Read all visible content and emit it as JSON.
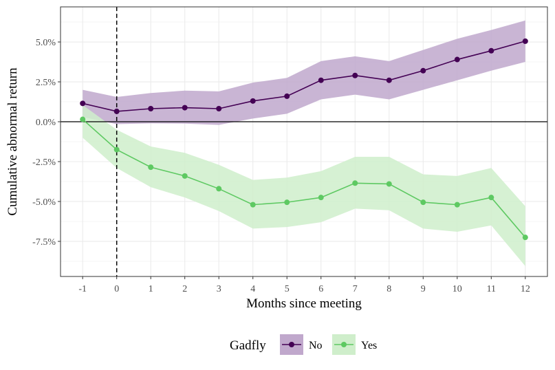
{
  "chart_data": {
    "type": "line",
    "xlabel": "Months since meeting",
    "ylabel": "Cumulative abnormal return",
    "x": [
      -1,
      0,
      1,
      2,
      3,
      4,
      5,
      6,
      7,
      8,
      9,
      10,
      11,
      12
    ],
    "x_tick_labels": [
      "-1",
      "0",
      "1",
      "2",
      "3",
      "4",
      "5",
      "6",
      "7",
      "8",
      "9",
      "10",
      "11",
      "12"
    ],
    "y_ticks": [
      5.0,
      2.5,
      0.0,
      -2.5,
      -5.0,
      -7.5
    ],
    "y_tick_labels": [
      "5.0%",
      "2.5%",
      "0.0%",
      "-2.5%",
      "-5.0%",
      "-7.5%"
    ],
    "xlim": [
      -1.65,
      12.65
    ],
    "ylim": [
      -9.7,
      7.2
    ],
    "grid": true,
    "reference_hline": 0,
    "reference_vline": 0,
    "legend": {
      "title": "Gadfly",
      "position": "bottom",
      "entries": [
        "No",
        "Yes"
      ]
    },
    "series": [
      {
        "name": "No",
        "color": "#440154",
        "band_color": "#c0a8cc",
        "values": [
          1.15,
          0.65,
          0.82,
          0.88,
          0.82,
          1.3,
          1.6,
          2.6,
          2.9,
          2.6,
          3.2,
          3.9,
          4.45,
          5.05
        ],
        "lower": [
          0.3,
          -0.15,
          -0.1,
          -0.12,
          -0.2,
          0.2,
          0.5,
          1.4,
          1.7,
          1.4,
          2.0,
          2.6,
          3.2,
          3.75
        ],
        "upper": [
          2.0,
          1.55,
          1.8,
          1.95,
          1.9,
          2.45,
          2.75,
          3.8,
          4.1,
          3.8,
          4.5,
          5.2,
          5.75,
          6.35
        ]
      },
      {
        "name": "Yes",
        "color": "#5ec962",
        "band_color": "#cfeecb",
        "values": [
          0.15,
          -1.75,
          -2.85,
          -3.4,
          -4.2,
          -5.2,
          -5.05,
          -4.75,
          -3.85,
          -3.9,
          -5.05,
          -5.2,
          -4.75,
          -7.25
        ],
        "lower": [
          -1.0,
          -2.9,
          -4.1,
          -4.75,
          -5.6,
          -6.7,
          -6.6,
          -6.3,
          -5.45,
          -5.55,
          -6.7,
          -6.9,
          -6.5,
          -9.05
        ],
        "upper": [
          1.05,
          -0.5,
          -1.55,
          -1.95,
          -2.7,
          -3.65,
          -3.5,
          -3.1,
          -2.2,
          -2.2,
          -3.3,
          -3.4,
          -2.9,
          -5.3
        ]
      }
    ]
  }
}
